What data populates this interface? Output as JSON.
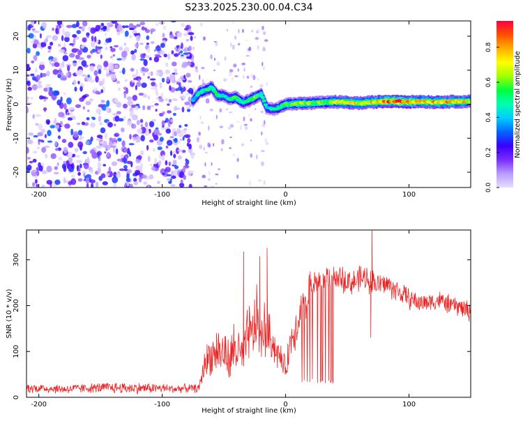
{
  "title": "S233.2025.230.00.04.C34",
  "chart_data": [
    {
      "type": "heatmap",
      "xlabel": "Height of straight line (km)",
      "ylabel": "Frequency (Hz)",
      "xlim": [
        -210,
        150
      ],
      "ylim": [
        -24.5,
        24.5
      ],
      "xticks": [
        -200,
        -100,
        0,
        100
      ],
      "yticks": [
        20,
        10,
        0,
        -10,
        -20
      ],
      "colorbar": {
        "label": "Normalized spectral amplitude",
        "range": [
          0,
          0.95
        ],
        "ticks": [
          "0.0",
          "0.2",
          "0.4",
          "0.6",
          "0.8"
        ],
        "colors": [
          "#e8dcff",
          "#b99cff",
          "#7a2cff",
          "#3a00ff",
          "#0066ff",
          "#00ccff",
          "#00ffb0",
          "#00ff40",
          "#a0ff00",
          "#ffff00",
          "#ffb000",
          "#ff5000",
          "#ff0040"
        ]
      },
      "noise_region_x": [
        -210,
        -75
      ],
      "ridge": {
        "x": [
          -75,
          -70,
          -65,
          -60,
          -55,
          -50,
          -45,
          -40,
          -35,
          -30,
          -25,
          -20,
          -15,
          -10,
          -5,
          0,
          10,
          20,
          30,
          40,
          50,
          60,
          70,
          80,
          90,
          100,
          110,
          120,
          130,
          140,
          150
        ],
        "freq": [
          1,
          3.5,
          4,
          5,
          2.5,
          2.5,
          1.5,
          2,
          0.5,
          1,
          2,
          3,
          -1,
          -1.5,
          -1,
          0,
          0.2,
          0.3,
          0.5,
          0.7,
          0.5,
          0.3,
          0.6,
          0.8,
          0.9,
          0.7,
          0.8,
          0.6,
          0.7,
          0.8,
          0.8
        ],
        "amplitude": [
          0.35,
          0.45,
          0.5,
          0.55,
          0.5,
          0.45,
          0.45,
          0.55,
          0.45,
          0.5,
          0.6,
          0.5,
          0.4,
          0.45,
          0.5,
          0.55,
          0.65,
          0.6,
          0.6,
          0.65,
          0.75,
          0.7,
          0.75,
          0.8,
          0.9,
          0.85,
          0.75,
          0.8,
          0.8,
          0.75,
          0.7
        ]
      }
    },
    {
      "type": "line",
      "xlabel": "Height of straight line (km)",
      "ylabel": "SNR (10 * v/v)",
      "xlim": [
        -210,
        150
      ],
      "ylim": [
        0,
        365
      ],
      "xticks": [
        -200,
        -100,
        0,
        100
      ],
      "yticks": [
        0,
        100,
        200,
        300
      ],
      "line_color": "#ee2222",
      "series": [
        {
          "name": "SNR",
          "x": [
            -210,
            -200,
            -180,
            -160,
            -140,
            -120,
            -100,
            -90,
            -80,
            -75,
            -70,
            -66,
            -62,
            -58,
            -55,
            -52,
            -50,
            -48,
            -45,
            -42,
            -38,
            -35,
            -32,
            -30,
            -28,
            -25,
            -22,
            -20,
            -18,
            -15,
            -12,
            -10,
            -8,
            -5,
            -2,
            0,
            3,
            6,
            10,
            13,
            16,
            18,
            20,
            25,
            30,
            35,
            40,
            45,
            50,
            55,
            60,
            65,
            70,
            75,
            80,
            85,
            90,
            95,
            100,
            105,
            110,
            115,
            120,
            125,
            130,
            135,
            140,
            145,
            150
          ],
          "base": [
            20,
            20,
            18,
            20,
            21,
            20,
            20,
            18,
            20,
            19,
            20,
            70,
            90,
            95,
            105,
            95,
            100,
            88,
            75,
            110,
            100,
            80,
            110,
            150,
            125,
            160,
            175,
            110,
            150,
            140,
            130,
            120,
            100,
            90,
            75,
            60,
            110,
            140,
            170,
            190,
            205,
            225,
            240,
            250,
            255,
            258,
            262,
            258,
            255,
            250,
            258,
            260,
            255,
            245,
            248,
            242,
            232,
            225,
            215,
            210,
            205,
            208,
            210,
            212,
            205,
            200,
            198,
            192,
            188
          ],
          "noise_amplitude": [
            10,
            10,
            10,
            10,
            12,
            12,
            10,
            9,
            9,
            9,
            9,
            30,
            40,
            45,
            50,
            48,
            50,
            48,
            45,
            60,
            55,
            45,
            55,
            70,
            60,
            70,
            75,
            55,
            65,
            55,
            45,
            40,
            35,
            30,
            25,
            25,
            35,
            45,
            50,
            45,
            45,
            40,
            35,
            30,
            28,
            28,
            28,
            28,
            28,
            28,
            28,
            28,
            28,
            25,
            25,
            25,
            25,
            22,
            22,
            22,
            20,
            20,
            20,
            20,
            20,
            20,
            20,
            22,
            22
          ],
          "spikes": [
            {
              "x": -34,
              "y": 318
            },
            {
              "x": -21,
              "y": 308
            },
            {
              "x": -15,
              "y": 326
            },
            {
              "x": -32,
              "y": 120
            },
            {
              "x": 70,
              "y": 365
            },
            {
              "x": 69,
              "y": 130
            }
          ],
          "drop_region": {
            "x": [
              13,
              44
            ],
            "floor": 30
          }
        }
      ]
    }
  ]
}
